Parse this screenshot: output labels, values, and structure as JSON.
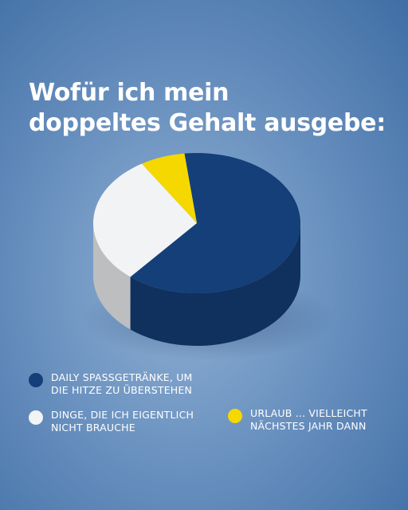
{
  "title": {
    "line1": "Wofür ich mein",
    "line2": "doppeltes Gehalt ausgebe:"
  },
  "colors": {
    "navy": "#153f79",
    "white": "#f2f3f5",
    "yellow": "#f5d800"
  },
  "chart_data": {
    "type": "pie",
    "title": "Wofür ich mein doppeltes Gehalt ausgebe:",
    "slices": [
      {
        "label": "DAILY SPASSGETRÄNKE, UM DIE HITZE ZU ÜBERSTEHEN",
        "value": 63,
        "color": "#153f79"
      },
      {
        "label": "DINGE, DIE ICH EIGENTLICH NICHT BRAUCHE",
        "value": 30,
        "color": "#f2f3f5"
      },
      {
        "label": "URLAUB ... VIELLEICHT NÄCHSTES JAHR DANN",
        "value": 7,
        "color": "#f5d800"
      }
    ],
    "legend_placement": "bottom"
  },
  "legend": [
    {
      "line1": "DAILY SPASSGETRÄNKE, UM",
      "line2": "DIE HITZE ZU ÜBERSTEHEN",
      "color": "#153f79"
    },
    {
      "line1": "DINGE, DIE ICH EIGENTLICH",
      "line2": "NICHT BRAUCHE",
      "color": "#f2f3f5"
    },
    {
      "line1": "URLAUB ... VIELLEICHT",
      "line2": "NÄCHSTES JAHR DANN",
      "color": "#f5d800"
    }
  ]
}
